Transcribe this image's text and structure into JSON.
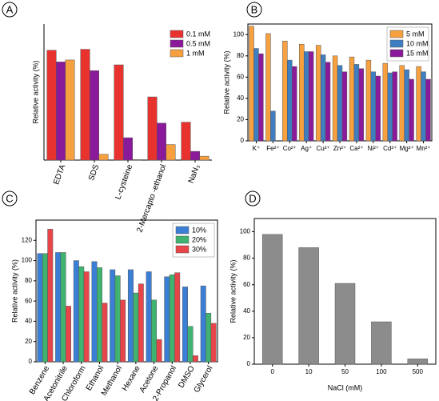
{
  "chart_data": [
    {
      "type": "bar",
      "panel": "A",
      "y_label": "Relative activity (%)",
      "categories": [
        "EDTA",
        "SDS",
        "L-cysteine",
        "2-Mercapto -ethanol",
        "NaN₃"
      ],
      "series": [
        {
          "name": "0.1 mM",
          "color": "#e8322e",
          "values": [
            113,
            114,
            98,
            65,
            39
          ]
        },
        {
          "name": "0.5 mM",
          "color": "#8b1a9a",
          "values": [
            101,
            92,
            23,
            38,
            9
          ]
        },
        {
          "name": "1 mM",
          "color": "#f7a040",
          "values": [
            103,
            6,
            0.5,
            16,
            4
          ]
        }
      ],
      "ylim": [
        0,
        140
      ],
      "legend": "upper right"
    },
    {
      "type": "bar",
      "panel": "B",
      "y_label": "Relative activity (%)",
      "categories": [
        "K⁺",
        "Fe²⁺",
        "Co²⁺",
        "Ag⁺",
        "Cu²⁺",
        "Zn²⁺",
        "Ca²⁺",
        "Ni²⁺",
        "Cd²⁺",
        "Mg²⁺",
        "Mn²⁺"
      ],
      "series": [
        {
          "name": "5 mM",
          "color": "#f7a040",
          "values": [
            108,
            101,
            94,
            91,
            90,
            80,
            79,
            76,
            73,
            71,
            70
          ]
        },
        {
          "name": "10 mM",
          "color": "#3f7fc1",
          "values": [
            87,
            28,
            76,
            84,
            81,
            71,
            72,
            65,
            64,
            67,
            65
          ]
        },
        {
          "name": "15 mM",
          "color": "#8b1a9a",
          "values": [
            82,
            null,
            70,
            84,
            74,
            65,
            68,
            61,
            65,
            58,
            58
          ]
        }
      ],
      "ylim": [
        0,
        110
      ],
      "yticks": [
        0,
        20,
        40,
        60,
        80,
        100
      ],
      "legend": "upper right"
    },
    {
      "type": "bar",
      "panel": "C",
      "y_label": "Relative activity (%)",
      "categories": [
        "Benzene",
        "Acetonitrile",
        "Chloroform",
        "Ethanol",
        "Methanol",
        "Hexane",
        "Acetone",
        "2-Propanol",
        "DMSO",
        "Glycerol"
      ],
      "series": [
        {
          "name": "10%",
          "color": "#3a7fd5",
          "values": [
            107,
            108,
            100,
            99,
            91,
            91,
            89,
            84,
            74,
            75
          ]
        },
        {
          "name": "20%",
          "color": "#3fb36f",
          "values": [
            107,
            108,
            94,
            93,
            85,
            68,
            61,
            86,
            35,
            48
          ]
        },
        {
          "name": "30%",
          "color": "#e8454a",
          "values": [
            131,
            55,
            89,
            58,
            61,
            77,
            22,
            88,
            6,
            38
          ]
        }
      ],
      "ylim": [
        0,
        140
      ],
      "yticks": [
        0,
        20,
        40,
        60,
        80,
        100,
        120
      ],
      "legend": "upper right"
    },
    {
      "type": "bar",
      "panel": "D",
      "y_label": "Relative activity (%)",
      "x_label": "NaCl (mM)",
      "categories": [
        "0",
        "10",
        "50",
        "100",
        "500"
      ],
      "series": [
        {
          "color": "#8c8c8c",
          "values": [
            98,
            88,
            61,
            32,
            4
          ]
        }
      ],
      "ylim": [
        0,
        110
      ],
      "yticks": [
        0,
        20,
        40,
        60,
        80,
        100
      ]
    }
  ]
}
